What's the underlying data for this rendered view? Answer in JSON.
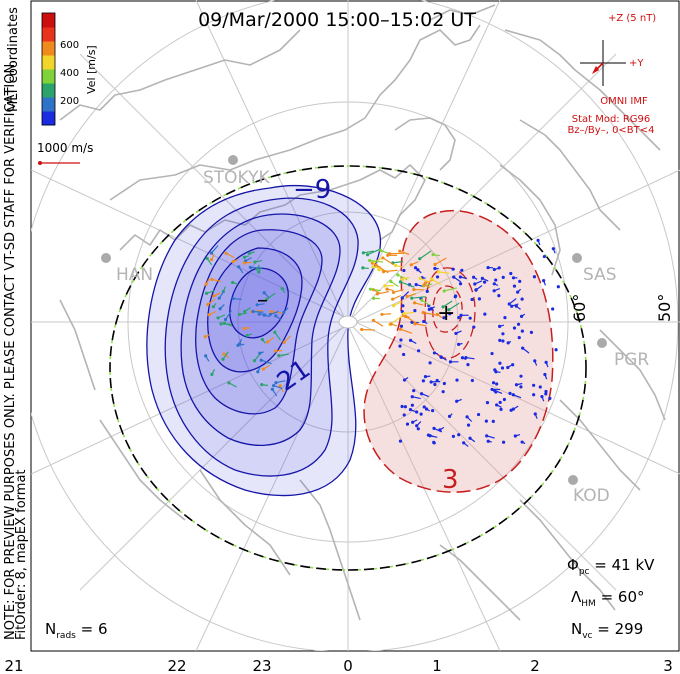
{
  "title": "09/Mar/2000 15:00–15:02 UT",
  "colorbar": {
    "tick_labels": [
      "600",
      "400",
      "200"
    ],
    "label": "Vel [m/s]",
    "colors": [
      "#1a2be0",
      "#2f73c9",
      "#2ba36b",
      "#7fd23a",
      "#f2d52a",
      "#f08a1d",
      "#e8341c",
      "#cc1010"
    ]
  },
  "coord_label": "MLT coordinates",
  "scale_label": "1000 m/s",
  "imf": {
    "z_label": "+Z (5 nT)",
    "y_label": "+Y",
    "source": "OMNI IMF",
    "model": "Stat Mod: RG96",
    "condition": "Bz–/By–, 0<BT<4"
  },
  "side_note": "NOTE: FOR PREVIEW PURPOSES ONLY. PLEASE CONTACT VT-SD STAFF FOR VERIFICATION.",
  "fit_note": "FitOrder: 8, mapEX format",
  "stations": [
    "STOKYK",
    "HAN",
    "SAS",
    "PGR",
    "KOD"
  ],
  "lat_labels": [
    "60°",
    "50°"
  ],
  "contour_labels": [
    "−9",
    "21",
    "3"
  ],
  "extrema": {
    "min": "–",
    "max": "+"
  },
  "stats": {
    "phi_pc_sym": "Φ",
    "phi_pc_sub": "pc",
    "phi_pc_val": " = 41 kV",
    "lambda_sym": "Λ",
    "lambda_sub": "HM",
    "lambda_val": " = 60°",
    "nvc_sym": "N",
    "nvc_sub": "vc",
    "nvc_val": " = 299",
    "nrads_sym": "N",
    "nrads_sub": "rads",
    "nrads_val": " = 6"
  },
  "mlt_ticks": [
    "21",
    "22",
    "23",
    "0",
    "1",
    "2",
    "3"
  ],
  "colors": {
    "negative_fill": "#5a5ae6",
    "positive_fill": "#e6a3a3",
    "negative_line": "#1515a8",
    "positive_line": "#c81e1e",
    "grid": "#c8c8c8",
    "coast": "#b4b4b4",
    "imf": "#d01010"
  }
}
